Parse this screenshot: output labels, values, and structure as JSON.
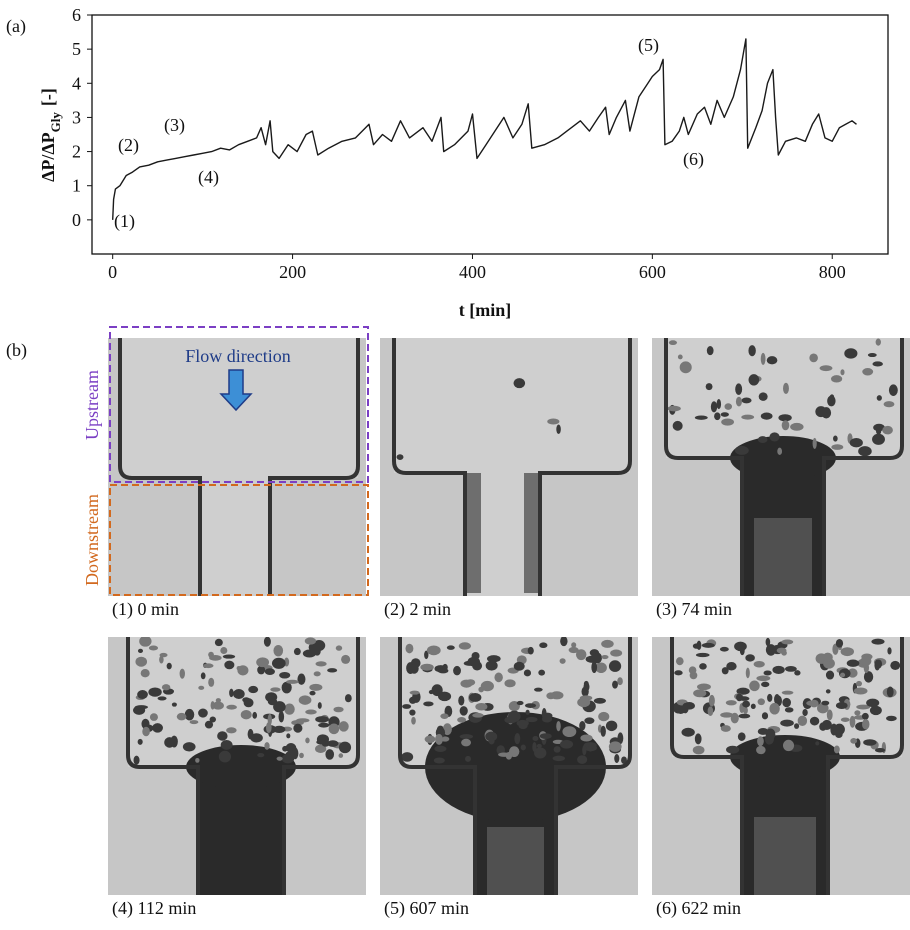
{
  "panel_labels": {
    "a": "(a)",
    "b": "(b)"
  },
  "chart_data": {
    "type": "line",
    "ylabel": {
      "main": "ΔP/ΔP",
      "sub": "Gly",
      "unit": "[-]"
    },
    "xlabel": "t [min]",
    "color": "#1a1a1a",
    "x": [
      0,
      1,
      3,
      8,
      15,
      22,
      30,
      40,
      50,
      60,
      70,
      80,
      90,
      100,
      110,
      120,
      130,
      140,
      150,
      160,
      165,
      170,
      175,
      178,
      185,
      195,
      205,
      215,
      222,
      228,
      240,
      255,
      270,
      285,
      290,
      300,
      310,
      320,
      330,
      345,
      355,
      365,
      368,
      380,
      395,
      400,
      405,
      415,
      425,
      435,
      445,
      455,
      462,
      466,
      480,
      495,
      505,
      520,
      530,
      540,
      548,
      552,
      560,
      570,
      575,
      585,
      595,
      600,
      608,
      612,
      614,
      622,
      630,
      635,
      640,
      650,
      658,
      665,
      672,
      680,
      690,
      698,
      704,
      706,
      715,
      722,
      728,
      734,
      737,
      740,
      748,
      760,
      770,
      778,
      785,
      792,
      800,
      808,
      815,
      822,
      827
    ],
    "values": [
      0,
      0.6,
      0.9,
      1.0,
      1.3,
      1.4,
      1.55,
      1.6,
      1.7,
      1.75,
      1.8,
      1.85,
      1.9,
      1.95,
      2.0,
      2.1,
      2.05,
      2.2,
      2.3,
      2.4,
      2.7,
      2.2,
      2.9,
      2.0,
      1.8,
      2.2,
      2.0,
      2.5,
      2.6,
      1.9,
      2.1,
      2.3,
      2.4,
      2.8,
      2.2,
      2.5,
      2.3,
      2.9,
      2.4,
      2.7,
      2.3,
      3.0,
      2.0,
      2.2,
      2.6,
      3.1,
      1.8,
      2.2,
      2.6,
      3.0,
      2.4,
      2.8,
      3.4,
      2.1,
      2.2,
      2.4,
      2.6,
      2.9,
      2.6,
      3.0,
      3.3,
      2.5,
      3.0,
      3.5,
      2.6,
      3.6,
      4.0,
      4.2,
      4.4,
      4.7,
      2.2,
      2.3,
      2.6,
      3.0,
      2.5,
      3.1,
      3.3,
      2.8,
      3.5,
      3.0,
      3.6,
      4.4,
      5.3,
      2.1,
      2.7,
      3.2,
      4.0,
      4.4,
      3.0,
      1.9,
      2.3,
      2.4,
      2.3,
      2.8,
      3.1,
      2.4,
      2.3,
      2.7,
      2.8,
      2.9,
      2.8
    ],
    "xlim": [
      -23,
      862
    ],
    "ylim": [
      -1,
      6
    ],
    "xticks": [
      0,
      200,
      400,
      600,
      800
    ],
    "yticks": [
      0,
      1,
      2,
      3,
      4,
      5,
      6
    ],
    "annotations": [
      "(1)",
      "(2)",
      "(3)",
      "(4)",
      "(5)",
      "(6)"
    ]
  },
  "images": {
    "flow_label": "Flow direction",
    "upstream": "Upstream",
    "downstream": "Downstream",
    "captions": [
      "(1) 0 min",
      "(2) 2 min",
      "(3) 74 min",
      "(4) 112 min",
      "(5) 607 min",
      "(6) 622 min"
    ]
  }
}
